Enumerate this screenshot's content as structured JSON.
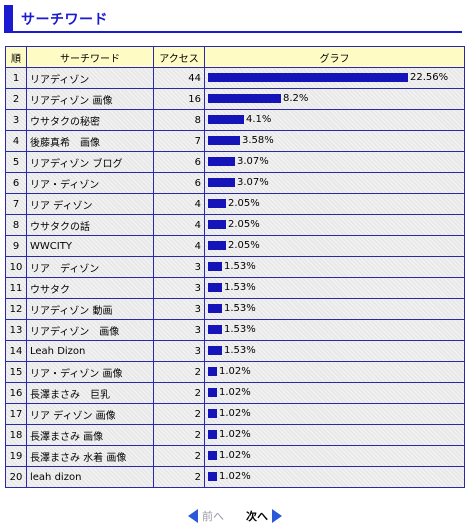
{
  "section": {
    "title": "サーチワード"
  },
  "table": {
    "headers": {
      "rank": "順",
      "keyword": "サーチワード",
      "count": "アクセス",
      "graph": "グラフ"
    },
    "rows": [
      {
        "rank": "1",
        "keyword": "リアディゾン",
        "count": "44",
        "pct": "22.56%",
        "pct_value": 22.56
      },
      {
        "rank": "2",
        "keyword": "リアディゾン 画像",
        "count": "16",
        "pct": "8.2%",
        "pct_value": 8.2
      },
      {
        "rank": "3",
        "keyword": "ウサタクの秘密",
        "count": "8",
        "pct": "4.1%",
        "pct_value": 4.1
      },
      {
        "rank": "4",
        "keyword": "後藤真希　画像",
        "count": "7",
        "pct": "3.58%",
        "pct_value": 3.58
      },
      {
        "rank": "5",
        "keyword": "リアディゾン ブログ",
        "count": "6",
        "pct": "3.07%",
        "pct_value": 3.07
      },
      {
        "rank": "6",
        "keyword": "リア・ディゾン",
        "count": "6",
        "pct": "3.07%",
        "pct_value": 3.07
      },
      {
        "rank": "7",
        "keyword": "リア ディゾン",
        "count": "4",
        "pct": "2.05%",
        "pct_value": 2.05
      },
      {
        "rank": "8",
        "keyword": "ウサタクの話",
        "count": "4",
        "pct": "2.05%",
        "pct_value": 2.05
      },
      {
        "rank": "9",
        "keyword": "WWCITY",
        "count": "4",
        "pct": "2.05%",
        "pct_value": 2.05
      },
      {
        "rank": "10",
        "keyword": "リア　ディゾン",
        "count": "3",
        "pct": "1.53%",
        "pct_value": 1.53
      },
      {
        "rank": "11",
        "keyword": "ウサタク",
        "count": "3",
        "pct": "1.53%",
        "pct_value": 1.53
      },
      {
        "rank": "12",
        "keyword": "リアディゾン 動画",
        "count": "3",
        "pct": "1.53%",
        "pct_value": 1.53
      },
      {
        "rank": "13",
        "keyword": "リアディゾン　画像",
        "count": "3",
        "pct": "1.53%",
        "pct_value": 1.53
      },
      {
        "rank": "14",
        "keyword": "Leah Dizon",
        "count": "3",
        "pct": "1.53%",
        "pct_value": 1.53
      },
      {
        "rank": "15",
        "keyword": "リア・ディゾン 画像",
        "count": "2",
        "pct": "1.02%",
        "pct_value": 1.02
      },
      {
        "rank": "16",
        "keyword": "長澤まさみ　巨乳",
        "count": "2",
        "pct": "1.02%",
        "pct_value": 1.02
      },
      {
        "rank": "17",
        "keyword": "リア ディゾン 画像",
        "count": "2",
        "pct": "1.02%",
        "pct_value": 1.02
      },
      {
        "rank": "18",
        "keyword": "長澤まさみ 画像",
        "count": "2",
        "pct": "1.02%",
        "pct_value": 1.02
      },
      {
        "rank": "19",
        "keyword": "長澤まさみ 水着 画像",
        "count": "2",
        "pct": "1.02%",
        "pct_value": 1.02
      },
      {
        "rank": "20",
        "keyword": "leah dizon",
        "count": "2",
        "pct": "1.02%",
        "pct_value": 1.02
      }
    ]
  },
  "pager": {
    "prev_label": "前へ",
    "next_label": "次へ"
  },
  "colors": {
    "accent": "#1a1ad0",
    "bar": "#1414b8",
    "header_bg": "#fefcc4",
    "arrow": "#2a58d8"
  },
  "icons": {
    "prev": "arrow-left-icon",
    "next": "arrow-right-icon"
  }
}
